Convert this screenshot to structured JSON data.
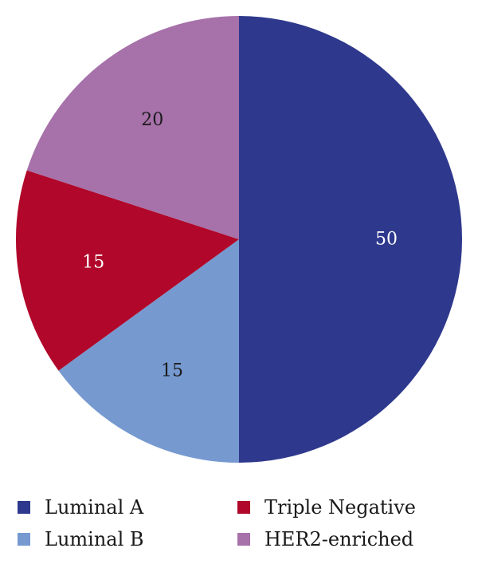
{
  "chart_data": {
    "type": "pie",
    "title": "",
    "categories": [
      "Luminal A",
      "Luminal B",
      "Triple Negative",
      "HER2-enriched"
    ],
    "values": [
      50,
      15,
      15,
      20
    ],
    "data_labels": [
      "50",
      "15",
      "15",
      "20"
    ],
    "colors": [
      "#2e388c",
      "#7699d0",
      "#b0072a",
      "#a771aa"
    ],
    "label_colors": [
      "#ffffff",
      "#1a1a1a",
      "#ffffff",
      "#1a1a1a"
    ],
    "start_angle_deg": 0,
    "direction": "clockwise",
    "legend": {
      "placement": "bottom",
      "order": [
        "Luminal A",
        "Triple Negative",
        "Luminal B",
        "HER2-enriched"
      ]
    }
  }
}
